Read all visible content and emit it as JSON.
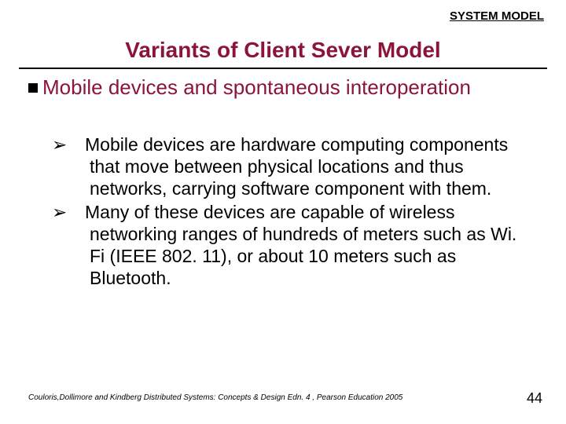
{
  "header": {
    "label": "SYSTEM MODEL"
  },
  "title": {
    "text": "Variants of Client Sever Model",
    "color": "#8a1538"
  },
  "section": {
    "heading": "Mobile devices and spontaneous interoperation",
    "heading_color": "#8a1538"
  },
  "bullets": {
    "arrow_glyph": "➢",
    "items": [
      "Mobile devices are hardware computing components that move between physical locations and thus networks, carrying software component with them.",
      "Many of these devices are capable of wireless networking ranges of hundreds of meters such as Wi. Fi (IEEE 802. 11), or about 10 meters such as Bluetooth."
    ]
  },
  "footer": {
    "citation": "Couloris,Dollimore and Kindberg  Distributed Systems: Concepts & Design  Edn. 4 , Pearson Education 2005",
    "page_number": "44"
  }
}
